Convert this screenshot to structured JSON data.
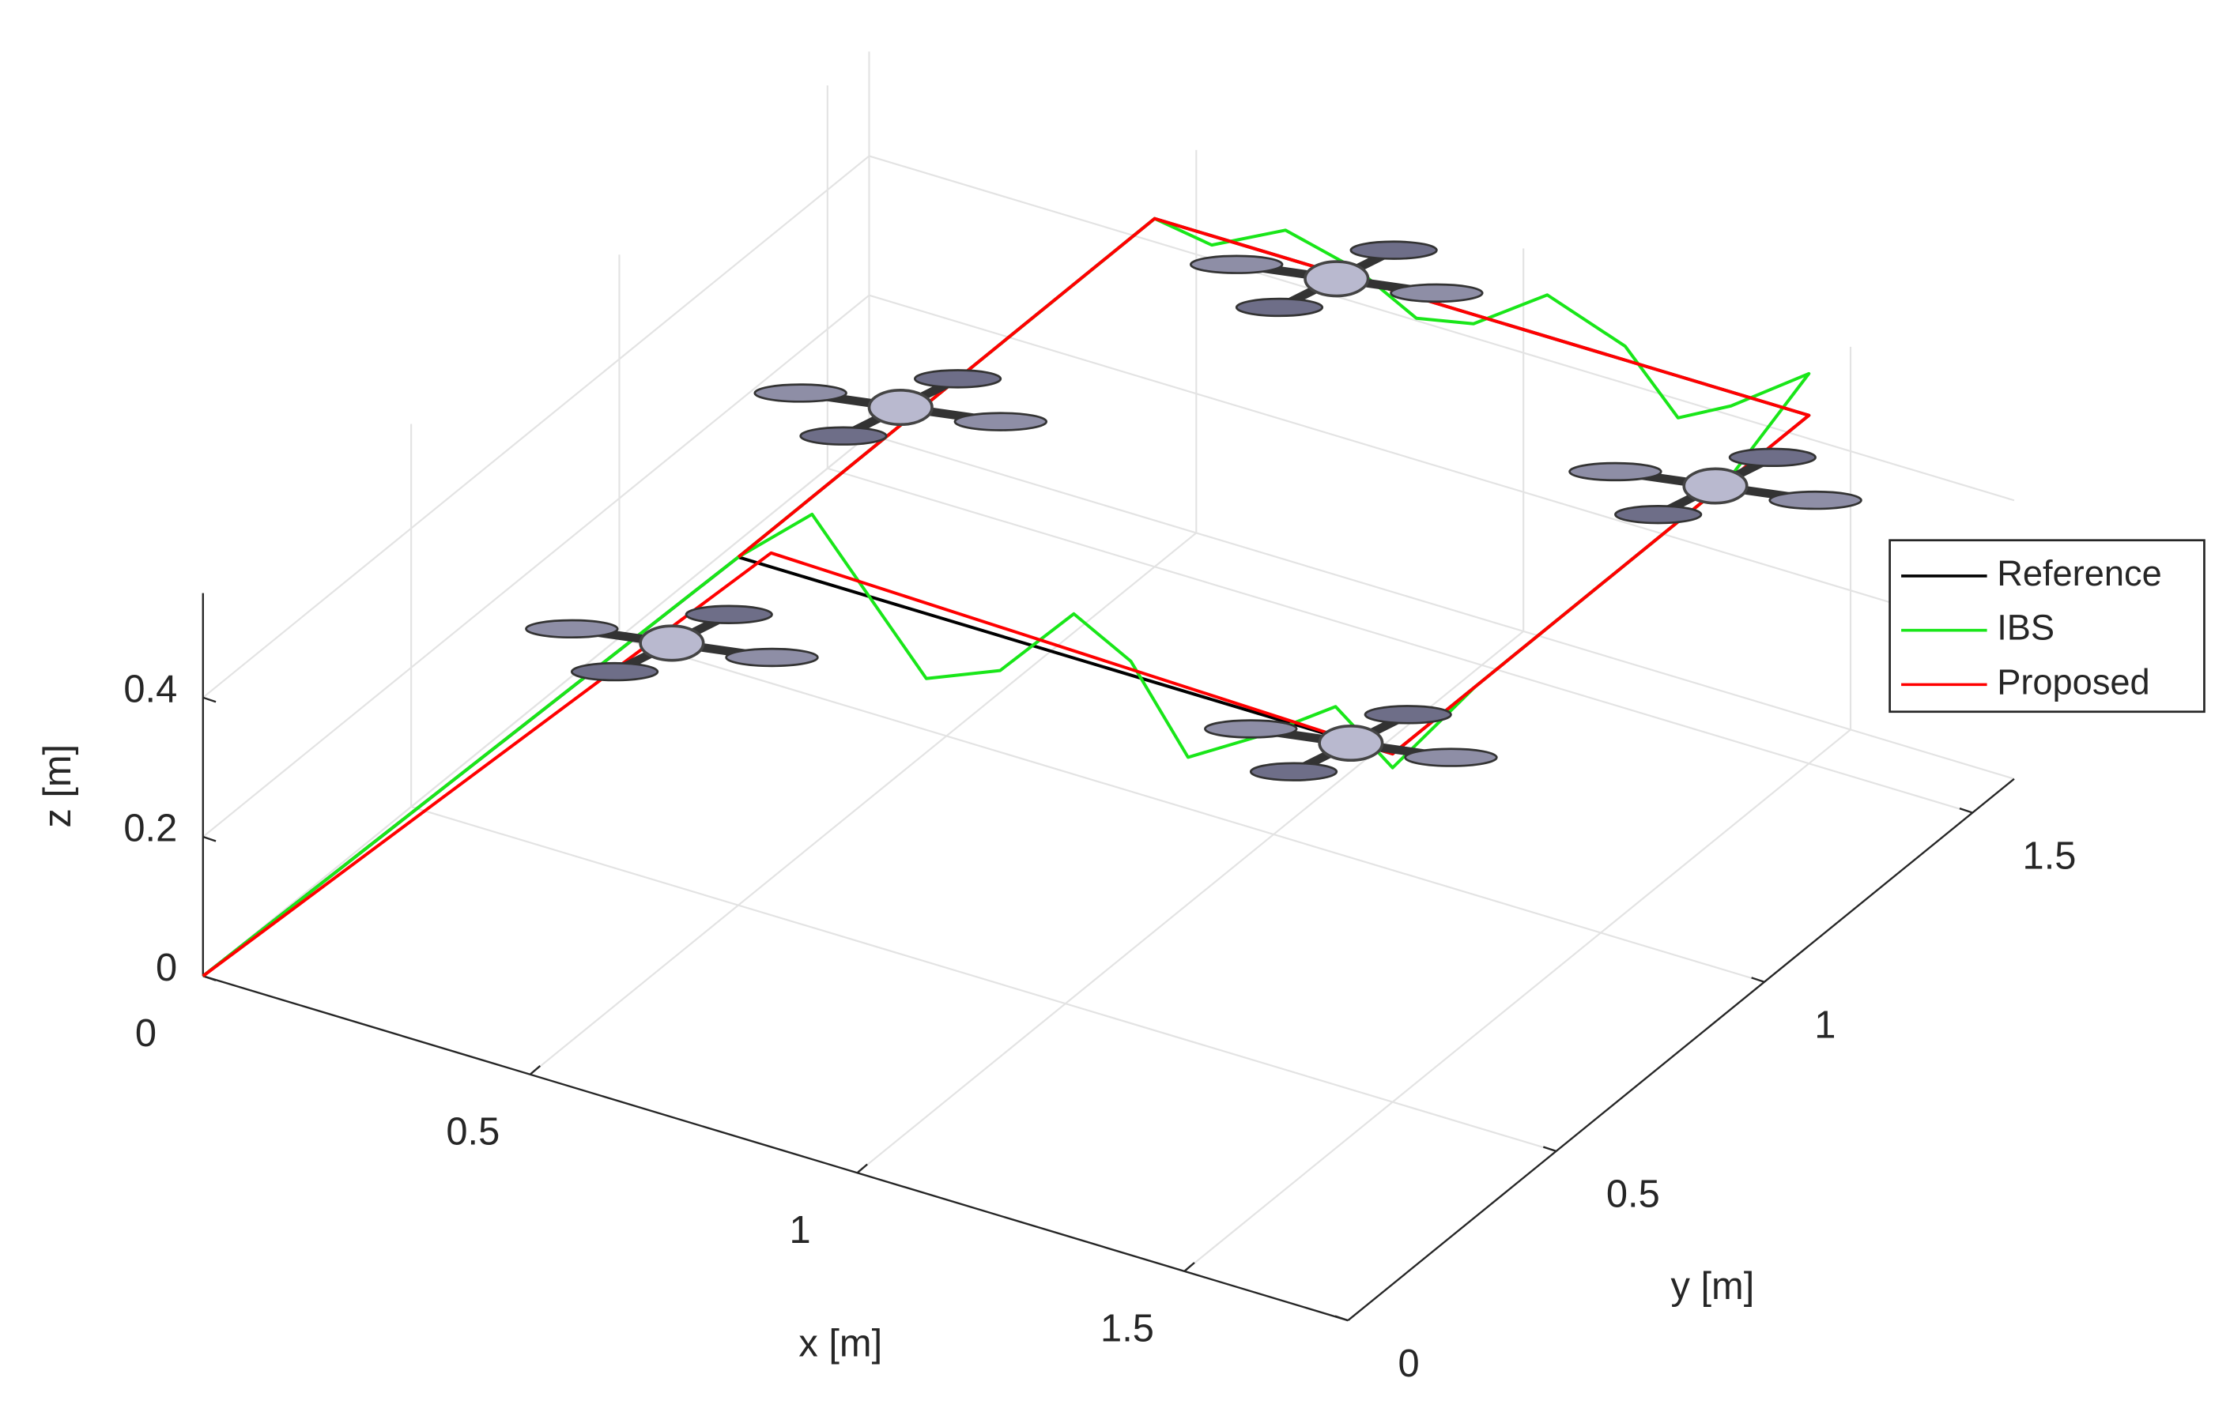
{
  "chart_data": {
    "type": "line3d",
    "xlabel": "x [m]",
    "ylabel": "y [m]",
    "zlabel": "z [m]",
    "xlim": [
      0,
      1.75
    ],
    "ylim": [
      0,
      1.6
    ],
    "zlim": [
      0,
      0.55
    ],
    "xticks": [
      0,
      0.5,
      1,
      1.5
    ],
    "yticks": [
      0,
      0.5,
      1,
      1.5
    ],
    "zticks": [
      0,
      0.2,
      0.4
    ],
    "grid": true,
    "legend": "right",
    "series": [
      {
        "name": "Reference",
        "color": "#000000",
        "x": [
          0,
          0.5,
          1.5,
          1.5,
          0.5,
          0.5
        ],
        "y": [
          0,
          0.5,
          0.5,
          1.5,
          1.5,
          0.5
        ],
        "z": [
          0,
          0.5,
          0.5,
          0.5,
          0.5,
          0.5
        ]
      },
      {
        "name": "IBS",
        "color": "#19e619",
        "x": [
          0,
          0.45,
          0.5,
          0.6,
          0.7,
          0.8,
          0.9,
          1.0,
          1.1,
          1.2,
          1.3,
          1.4,
          1.5,
          1.5,
          1.5,
          1.5,
          1.5,
          1.5,
          1.4,
          1.3,
          1.2,
          1.1,
          1.0,
          0.9,
          0.8,
          0.7,
          0.6,
          0.5,
          0.5,
          0.5,
          0.5,
          0.5,
          0.5
        ],
        "y": [
          0,
          0.45,
          0.5,
          0.52,
          0.5,
          0.48,
          0.5,
          0.52,
          0.5,
          0.48,
          0.5,
          0.52,
          0.5,
          0.7,
          0.9,
          1.1,
          1.3,
          1.5,
          1.47,
          1.5,
          1.53,
          1.5,
          1.48,
          1.5,
          1.52,
          1.5,
          1.48,
          1.5,
          1.3,
          1.1,
          0.9,
          0.7,
          0.5
        ],
        "z": [
          0,
          0.45,
          0.5,
          0.58,
          0.5,
          0.42,
          0.45,
          0.55,
          0.52,
          0.42,
          0.47,
          0.53,
          0.48,
          0.5,
          0.5,
          0.5,
          0.5,
          0.56,
          0.5,
          0.44,
          0.5,
          0.56,
          0.5,
          0.47,
          0.5,
          0.54,
          0.5,
          0.5,
          0.5,
          0.5,
          0.5,
          0.5,
          0.5
        ]
      },
      {
        "name": "Proposed",
        "color": "#ff0000",
        "x": [
          0,
          0.55,
          1.5,
          1.5,
          0.5,
          0.5
        ],
        "y": [
          0,
          0.5,
          0.5,
          1.5,
          1.5,
          0.5
        ],
        "z": [
          0,
          0.52,
          0.5,
          0.5,
          0.5,
          0.5
        ]
      }
    ]
  }
}
